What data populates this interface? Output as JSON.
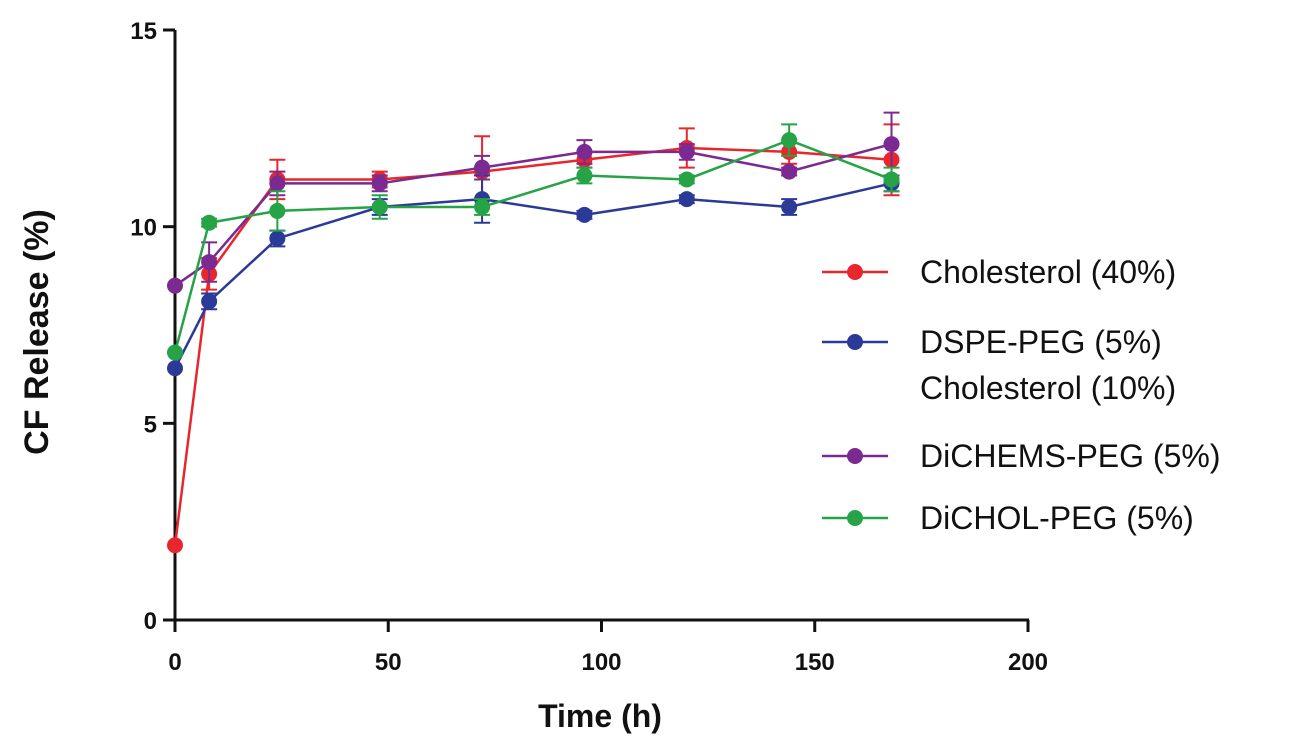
{
  "chart_data": {
    "type": "line",
    "title": "",
    "xlabel": "Time (h)",
    "ylabel": "CF Release (%)",
    "xlim": [
      0,
      200
    ],
    "ylim": [
      0,
      15
    ],
    "xticks": [
      "0",
      "50",
      "100",
      "150",
      "200"
    ],
    "yticks": [
      "0",
      "5",
      "10",
      "15"
    ],
    "grid": false,
    "legend_position": "right",
    "x": [
      0,
      8,
      24,
      48,
      72,
      96,
      120,
      144,
      168
    ],
    "series": [
      {
        "name": "Cholesterol (40%)",
        "color": "#e8262c",
        "values": [
          1.9,
          8.8,
          11.2,
          11.2,
          11.4,
          11.7,
          12.0,
          11.9,
          11.7
        ],
        "errors": [
          0.0,
          0.4,
          0.5,
          0.2,
          0.9,
          0.2,
          0.5,
          0.3,
          0.9
        ]
      },
      {
        "name": "DSPE-PEG (5%)\nCholesterol (10%)",
        "color": "#2b3a97",
        "values": [
          6.4,
          8.1,
          9.7,
          10.5,
          10.7,
          10.3,
          10.7,
          10.5,
          11.1
        ],
        "errors": [
          0.0,
          0.2,
          0.2,
          0.2,
          0.6,
          0.1,
          0.1,
          0.2,
          0.2
        ]
      },
      {
        "name": "DiCHEMS-PEG (5%)",
        "color": "#7a2a90",
        "values": [
          8.5,
          9.1,
          11.1,
          11.1,
          11.5,
          11.9,
          11.9,
          11.4,
          12.1
        ],
        "errors": [
          0.0,
          0.5,
          0.3,
          0.2,
          0.3,
          0.3,
          0.2,
          0.1,
          0.8
        ]
      },
      {
        "name": "DiCHOL-PEG (5%)",
        "color": "#26a346",
        "values": [
          6.8,
          10.1,
          10.4,
          10.5,
          10.5,
          11.3,
          11.2,
          12.2,
          11.2
        ],
        "errors": [
          0.0,
          0.1,
          0.5,
          0.3,
          0.2,
          0.2,
          0.1,
          0.4,
          0.3
        ]
      }
    ]
  }
}
